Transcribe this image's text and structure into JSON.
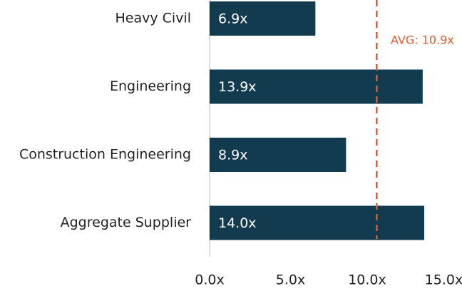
{
  "chart_data": {
    "type": "bar",
    "orientation": "horizontal",
    "categories": [
      "Heavy Civil",
      "Engineering",
      "Construction Engineering",
      "Aggregate Supplier"
    ],
    "values": [
      6.9,
      13.9,
      8.9,
      14.0
    ],
    "value_labels": [
      "6.9x",
      "13.9x",
      "8.9x",
      "14.0x"
    ],
    "color": "#133b4f",
    "xlim": [
      0,
      15
    ],
    "xticks": [
      {
        "value": 0,
        "label": "0.0x"
      },
      {
        "value": 5,
        "label": "5.0x"
      },
      {
        "value": 10,
        "label": "10.0x"
      },
      {
        "value": 15,
        "label": "15.0x"
      }
    ],
    "average": {
      "value": 10.9,
      "label": "AVG: 10.9x",
      "color": "#e05a2b"
    }
  }
}
